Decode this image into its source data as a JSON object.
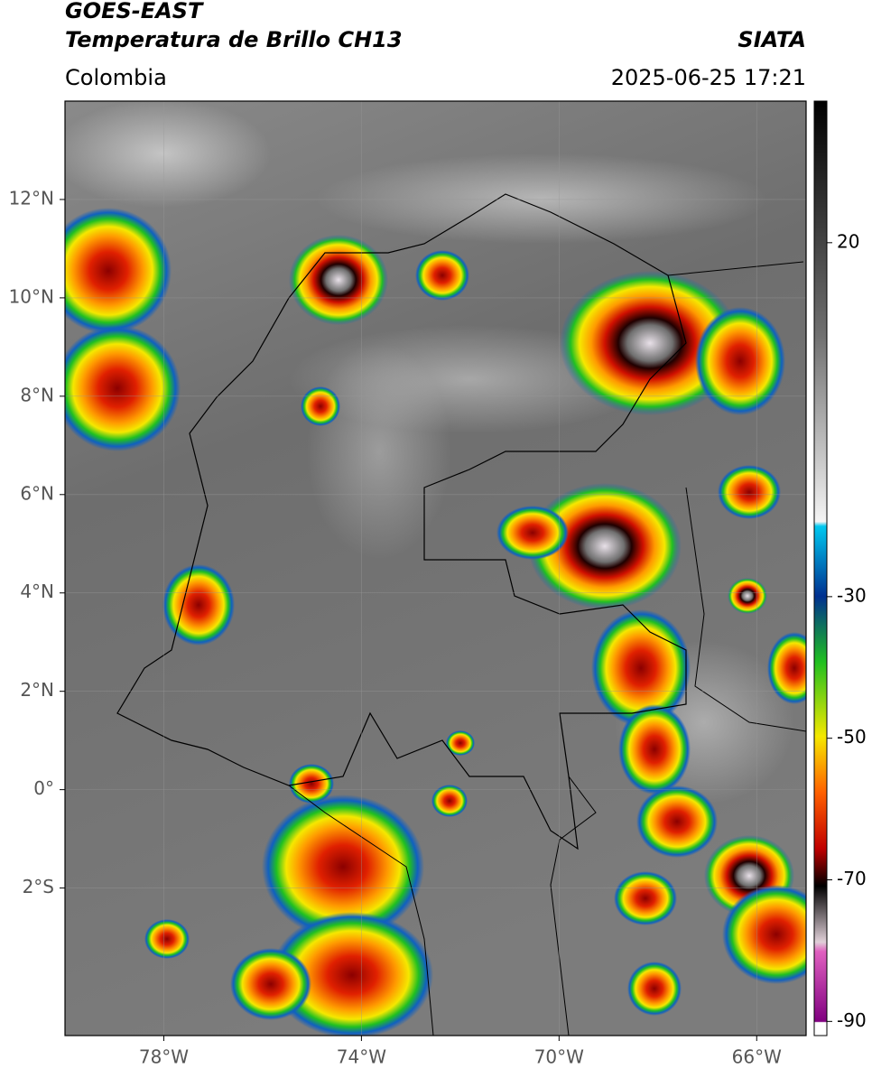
{
  "header": {
    "satellite": "GOES-EAST",
    "product": "Temperatura de Brillo CH13",
    "source": "SIATA",
    "region": "Colombia",
    "datetime": "2025-06-25 17:21"
  },
  "map": {
    "xlim": [
      -80,
      -65
    ],
    "ylim": [
      -5,
      14
    ],
    "xticks": [
      {
        "value": -78,
        "label": "78°W"
      },
      {
        "value": -74,
        "label": "74°W"
      },
      {
        "value": -70,
        "label": "70°W"
      },
      {
        "value": -66,
        "label": "66°W"
      }
    ],
    "yticks": [
      {
        "value": 12,
        "label": "12°N"
      },
      {
        "value": 10,
        "label": "10°N"
      },
      {
        "value": 8,
        "label": "8°N"
      },
      {
        "value": 6,
        "label": "6°N"
      },
      {
        "value": 4,
        "label": "4°N"
      },
      {
        "value": 2,
        "label": "2°N"
      },
      {
        "value": 0,
        "label": "0°"
      },
      {
        "value": -2,
        "label": "2°S"
      }
    ],
    "grid": true
  },
  "colorbar": {
    "lim": [
      -92,
      40
    ],
    "ticks": [
      20,
      -30,
      -50,
      -70,
      -90
    ]
  }
}
